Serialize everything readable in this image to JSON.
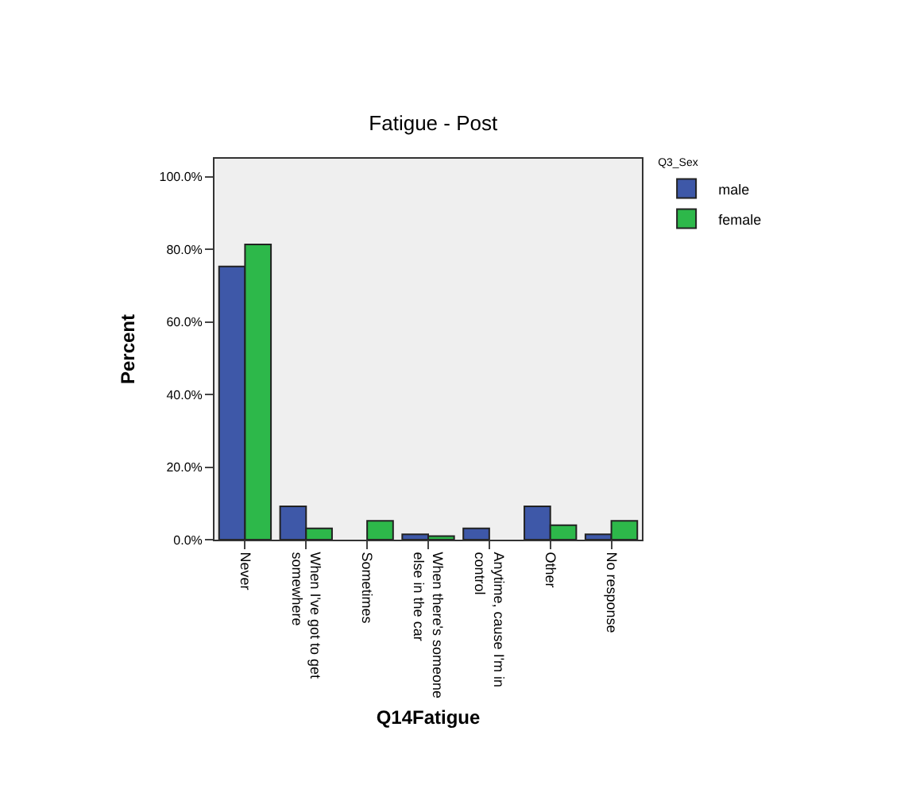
{
  "chart_data": {
    "type": "bar",
    "title": "Fatigue - Post",
    "xlabel": "Q14Fatigue",
    "ylabel": "Percent",
    "legend_title": "Q3_Sex",
    "categories": [
      "Never",
      "When I've got to get somewhere",
      "Sometimes",
      "When there's someone else in the car",
      "Anytime, cause I'm in control",
      "Other",
      "No response"
    ],
    "series": [
      {
        "name": "male",
        "color": "#3e58a8",
        "values": [
          75.3,
          9.2,
          null,
          1.5,
          3.1,
          9.2,
          1.5
        ]
      },
      {
        "name": "female",
        "color": "#2db84a",
        "values": [
          81.4,
          3.1,
          5.2,
          1.0,
          null,
          4.0,
          5.2
        ]
      }
    ],
    "ylim": [
      0,
      105
    ],
    "yticks": [
      {
        "value": 0,
        "label": "0.0%"
      },
      {
        "value": 20,
        "label": "20.0%"
      },
      {
        "value": 40,
        "label": "40.0%"
      },
      {
        "value": 60,
        "label": "60.0%"
      },
      {
        "value": 80,
        "label": "80.0%"
      },
      {
        "value": 100,
        "label": "100.0%"
      }
    ],
    "grid": false,
    "legend": "top right"
  }
}
